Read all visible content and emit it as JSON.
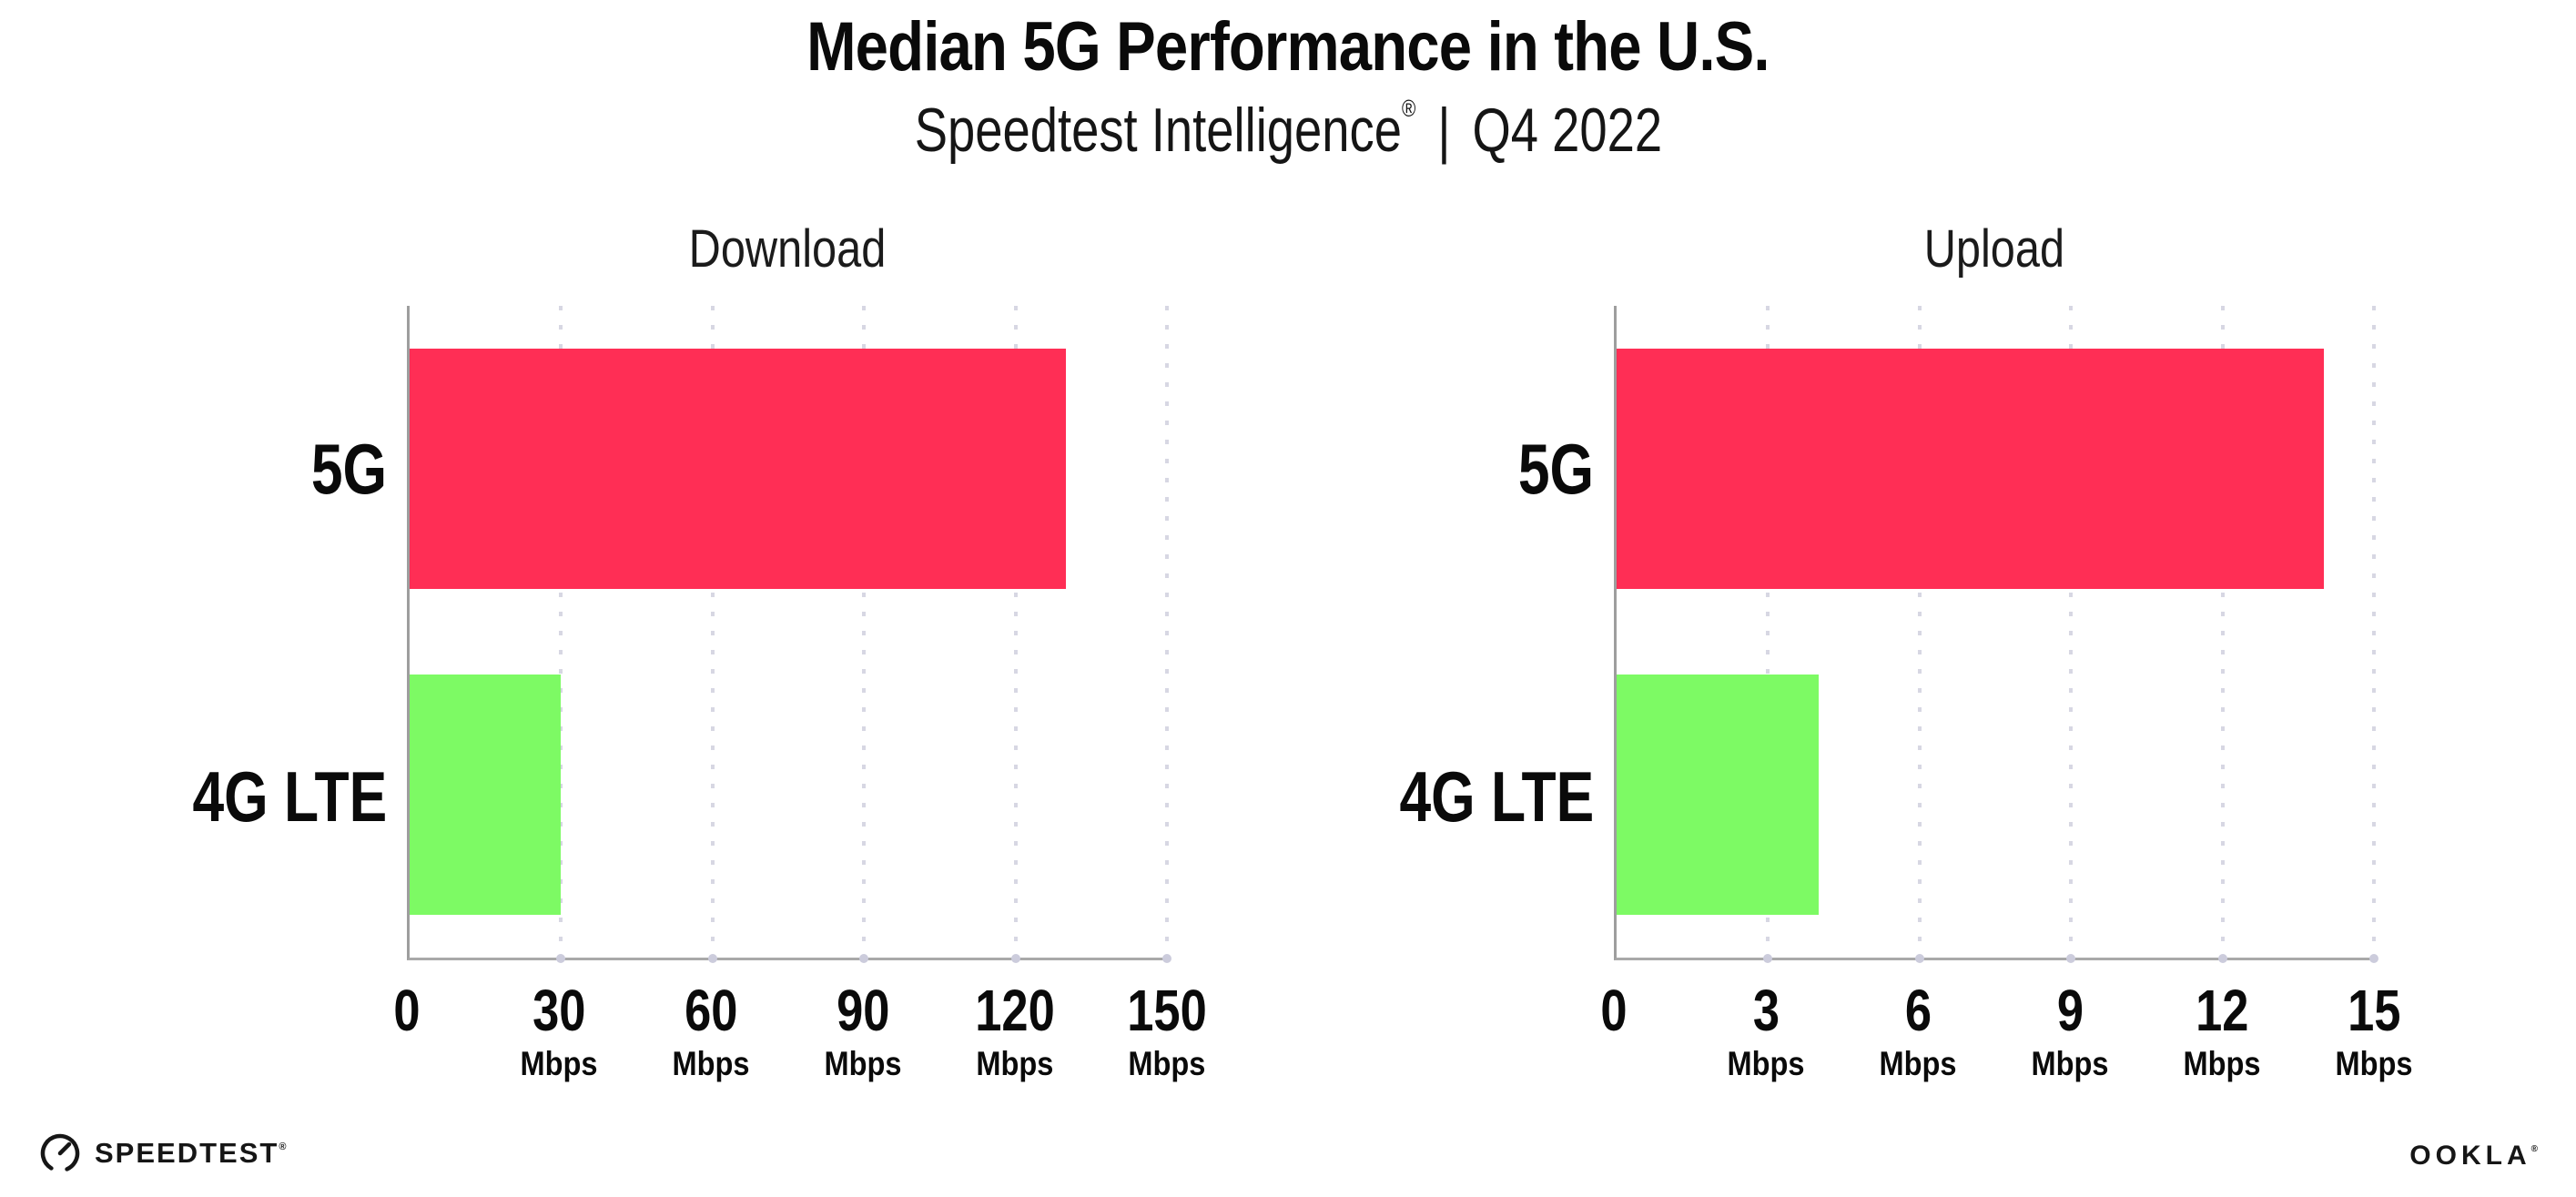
{
  "header": {
    "title": "Median 5G Performance in the U.S.",
    "subtitle_brand": "Speedtest Intelligence",
    "subtitle_reg": "®",
    "subtitle_separator": "|",
    "subtitle_period": "Q4 2022"
  },
  "chart_data": [
    {
      "type": "bar",
      "orientation": "horizontal",
      "title": "Download",
      "categories": [
        "5G",
        "4G LTE"
      ],
      "values": [
        130,
        30
      ],
      "unit": "Mbps",
      "xlim": [
        0,
        150
      ],
      "xticks": [
        0,
        30,
        60,
        90,
        120,
        150
      ],
      "bar_colors": [
        "#FF2E55",
        "#7DFA64"
      ],
      "grid": "vertical-dotted",
      "legend": "none"
    },
    {
      "type": "bar",
      "orientation": "horizontal",
      "title": "Upload",
      "categories": [
        "5G",
        "4G LTE"
      ],
      "values": [
        14,
        4
      ],
      "unit": "Mbps",
      "xlim": [
        0,
        15
      ],
      "xticks": [
        0,
        3,
        6,
        9,
        12,
        15
      ],
      "bar_colors": [
        "#FF2E55",
        "#7DFA64"
      ],
      "grid": "vertical-dotted",
      "legend": "none"
    }
  ],
  "footer": {
    "speedtest_label": "SPEEDTEST",
    "speedtest_reg": "®",
    "ookla_label": "OOKLA",
    "ookla_reg": "®"
  },
  "colors": {
    "bar_5g": "#FF2E55",
    "bar_4g_lte": "#7DFA64",
    "axis_line": "#9e9e9e",
    "gridline_dot": "#d7d7e3",
    "text": "#0a0a0a"
  }
}
